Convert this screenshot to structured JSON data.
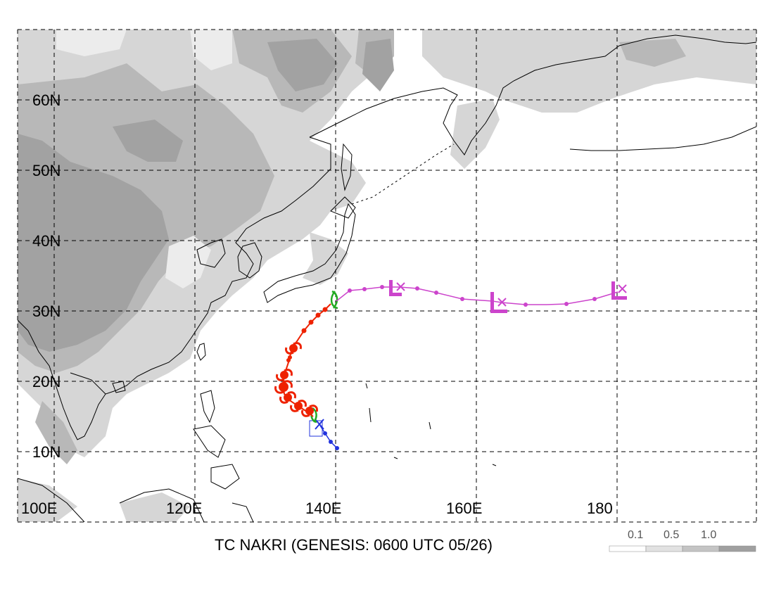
{
  "title": "TC NAKRI (GENESIS: 0600 UTC 05/26)",
  "lat_labels": [
    "60N",
    "50N",
    "40N",
    "30N",
    "20N",
    "10N"
  ],
  "lon_labels": [
    "100E",
    "120E",
    "140E",
    "160E",
    "180"
  ],
  "legend": {
    "labels": [
      "0.1",
      "0.5",
      "1.0"
    ],
    "colors": [
      "#ffffff",
      "#e2e2e2",
      "#c4c4c4",
      "#a0a0a0"
    ]
  },
  "colors": {
    "track_blue": "#2233dd",
    "track_green": "#22aa22",
    "track_red": "#ee2200",
    "track_magenta": "#cc44cc",
    "coast": "#000000",
    "grid": "#000000"
  },
  "icons": [
    "typhoon-symbol-icon",
    "tropical-storm-symbol-icon",
    "extratropical-low-icon",
    "dissipation-x-icon"
  ]
}
